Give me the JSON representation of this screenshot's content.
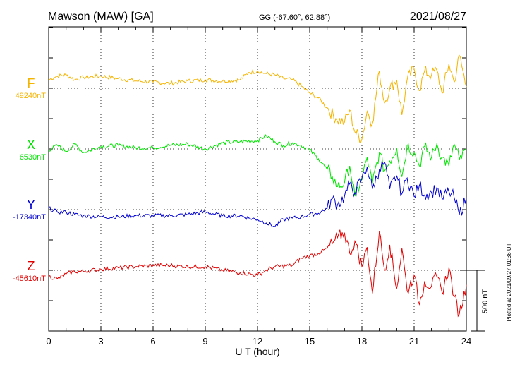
{
  "header": {
    "station": "Mawson (MAW)  [GA]",
    "coords": "GG (-67.60°,  62.88°)",
    "date": "2021/08/27"
  },
  "footer": {
    "plotted": "Plotted at 2021/09/27 01:36 UT"
  },
  "colors": {
    "F": "#f5b400",
    "X": "#00e400",
    "Y": "#0000d0",
    "Z": "#e00000"
  },
  "chart_data": {
    "type": "line",
    "xlabel": "U T (hour)",
    "xlim": [
      0,
      24
    ],
    "xticks": [
      0,
      3,
      6,
      9,
      12,
      15,
      18,
      21,
      24
    ],
    "xtick_labels": [
      "0",
      "3",
      "6",
      "9",
      "12",
      "15",
      "18",
      "21",
      "24"
    ],
    "scale_bar": {
      "label": "500 nT",
      "value_nT": 500
    },
    "grid": "dotted",
    "series": [
      {
        "name": "F",
        "baseline_label": "49240nT",
        "baseline_nT": 49240,
        "x": [
          0,
          0.5,
          1,
          1.5,
          2,
          3,
          4,
          5,
          6,
          7,
          8,
          9,
          10,
          11,
          11.5,
          12,
          12.5,
          13,
          13.5,
          14,
          14.5,
          15,
          15.5,
          16,
          16.5,
          17,
          17.3,
          17.6,
          18,
          18.3,
          18.6,
          19,
          19.3,
          19.6,
          20,
          20.3,
          20.6,
          21,
          21.3,
          21.6,
          22,
          22.3,
          22.6,
          23,
          23.3,
          23.6,
          24
        ],
        "y": [
          49310,
          49340,
          49350,
          49310,
          49330,
          49340,
          49320,
          49300,
          49290,
          49280,
          49300,
          49310,
          49300,
          49310,
          49370,
          49380,
          49360,
          49350,
          49320,
          49310,
          49260,
          49200,
          49160,
          49080,
          48990,
          48960,
          49060,
          48880,
          48820,
          49050,
          48950,
          49380,
          49120,
          49240,
          49310,
          49020,
          49310,
          49400,
          49220,
          49380,
          49350,
          49390,
          49200,
          49440,
          49290,
          49510,
          49250
        ]
      },
      {
        "name": "X",
        "baseline_label": "6530nT",
        "baseline_nT": 6530,
        "x": [
          0,
          0.5,
          1,
          1.5,
          2,
          3,
          4,
          5,
          6,
          7,
          8,
          9,
          10,
          11,
          12,
          12.5,
          13,
          13.5,
          14,
          14.5,
          15,
          15.5,
          16,
          16.3,
          16.6,
          17,
          17.3,
          17.6,
          18,
          18.3,
          18.6,
          19,
          19.3,
          19.6,
          20,
          20.3,
          20.6,
          21,
          21.3,
          21.6,
          22,
          22.3,
          22.6,
          23,
          23.3,
          23.6,
          24
        ],
        "y": [
          6520,
          6560,
          6510,
          6570,
          6500,
          6550,
          6560,
          6540,
          6540,
          6560,
          6570,
          6530,
          6580,
          6590,
          6600,
          6640,
          6590,
          6560,
          6580,
          6560,
          6520,
          6450,
          6360,
          6300,
          6220,
          6250,
          6390,
          6140,
          6280,
          6460,
          6240,
          6500,
          6350,
          6430,
          6540,
          6300,
          6560,
          6500,
          6390,
          6550,
          6460,
          6570,
          6460,
          6390,
          6570,
          6440,
          6520
        ]
      },
      {
        "name": "Y",
        "baseline_label": "-17340nT",
        "baseline_nT": -17340,
        "x": [
          0,
          0.5,
          1,
          1.5,
          2,
          3,
          4,
          5,
          6,
          7,
          8,
          9,
          10,
          11,
          11.5,
          12,
          12.5,
          13,
          13.5,
          14,
          14.5,
          15,
          15.5,
          16,
          16.3,
          16.6,
          17,
          17.3,
          17.6,
          18,
          18.3,
          18.6,
          19,
          19.3,
          19.6,
          20,
          20.3,
          20.6,
          21,
          21.3,
          21.6,
          22,
          22.3,
          22.6,
          23,
          23.3,
          23.6,
          24
        ],
        "y": [
          -17330,
          -17360,
          -17360,
          -17380,
          -17390,
          -17400,
          -17400,
          -17390,
          -17390,
          -17390,
          -17380,
          -17360,
          -17390,
          -17390,
          -17410,
          -17420,
          -17450,
          -17480,
          -17420,
          -17410,
          -17400,
          -17380,
          -17370,
          -17330,
          -17250,
          -17300,
          -17230,
          -17130,
          -17200,
          -17080,
          -16990,
          -17170,
          -17010,
          -16950,
          -17170,
          -17060,
          -17210,
          -17080,
          -17230,
          -17140,
          -17220,
          -17200,
          -17160,
          -17250,
          -17190,
          -17240,
          -17380,
          -17240
        ]
      },
      {
        "name": "Z",
        "baseline_label": "-45610nT",
        "baseline_nT": -45610,
        "x": [
          0,
          0.5,
          1,
          1.5,
          2,
          3,
          4,
          5,
          6,
          7,
          8,
          9,
          10,
          11,
          12,
          12.5,
          13,
          14,
          14.5,
          15,
          15.5,
          16,
          16.3,
          16.6,
          17,
          17.3,
          17.6,
          18,
          18.3,
          18.6,
          19,
          19.3,
          19.6,
          20,
          20.3,
          20.6,
          21,
          21.3,
          21.6,
          22,
          22.3,
          22.6,
          23,
          23.3,
          23.6,
          24
        ],
        "y": [
          -45660,
          -45680,
          -45640,
          -45620,
          -45620,
          -45600,
          -45590,
          -45580,
          -45570,
          -45570,
          -45580,
          -45580,
          -45610,
          -45630,
          -45650,
          -45610,
          -45580,
          -45570,
          -45510,
          -45490,
          -45470,
          -45430,
          -45390,
          -45340,
          -45300,
          -45470,
          -45370,
          -45580,
          -45420,
          -45800,
          -45290,
          -45610,
          -45400,
          -45760,
          -45430,
          -45780,
          -45650,
          -45890,
          -45700,
          -45740,
          -45660,
          -45790,
          -45590,
          -45830,
          -45970,
          -45730
        ]
      }
    ]
  }
}
